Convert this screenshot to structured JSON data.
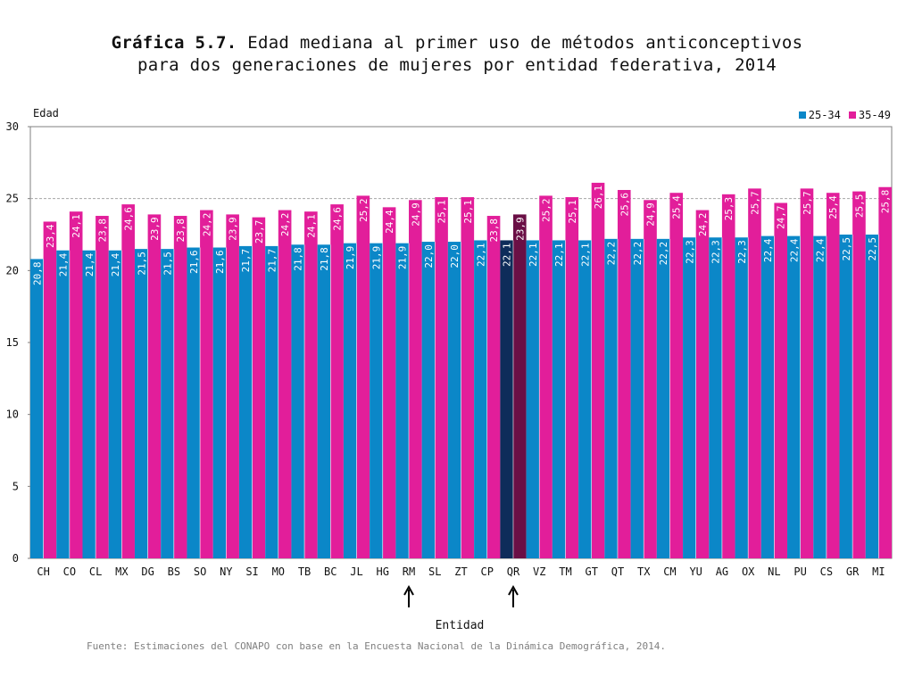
{
  "header": {
    "title_bold": "Gráfica 5.7.",
    "title_rest": "Edad mediana al primer uso de métodos anticonceptivos",
    "title_line2": "para dos generaciones de mujeres por entidad federativa, 2014"
  },
  "source": "Fuente: Estimaciones del CONAPO con base en la Encuesta Nacional de la Dinámica Demográfica, 2014.",
  "colors": {
    "series1": "#0b87c8",
    "series2": "#e21e9a",
    "series1_highlight": "#0e2c5a",
    "series2_highlight": "#6a0f45",
    "grid": "#a6a6a6",
    "axis": "#7f7f7f"
  },
  "chart_data": {
    "type": "bar",
    "xlabel": "Entidad",
    "ylabel": "Edad",
    "ylim": [
      0,
      30
    ],
    "yticks": [
      0,
      5,
      10,
      15,
      20,
      25,
      30
    ],
    "grid": "dashed at 25",
    "legend_position": "top-right",
    "categories": [
      "CH",
      "CO",
      "CL",
      "MX",
      "DG",
      "BS",
      "SO",
      "NY",
      "SI",
      "MO",
      "TB",
      "BC",
      "JL",
      "HG",
      "RM",
      "SL",
      "ZT",
      "CP",
      "QR",
      "VZ",
      "TM",
      "GT",
      "QT",
      "TX",
      "CM",
      "YU",
      "AG",
      "OX",
      "NL",
      "PU",
      "CS",
      "GR",
      "MI"
    ],
    "series": [
      {
        "name": "25-34",
        "values": [
          20.8,
          21.4,
          21.4,
          21.4,
          21.5,
          21.5,
          21.6,
          21.6,
          21.7,
          21.7,
          21.8,
          21.8,
          21.9,
          21.9,
          21.9,
          22.0,
          22.0,
          22.1,
          22.1,
          22.1,
          22.1,
          22.1,
          22.2,
          22.2,
          22.2,
          22.3,
          22.3,
          22.3,
          22.4,
          22.4,
          22.4,
          22.5,
          22.5
        ],
        "labels": [
          "20,8",
          "21,4",
          "21,4",
          "21,4",
          "21,5",
          "21,5",
          "21,6",
          "21,6",
          "21,7",
          "21,7",
          "21,8",
          "21,8",
          "21,9",
          "21,9",
          "21,9",
          "22,0",
          "22,0",
          "22,1",
          "22,1",
          "22,1",
          "22,1",
          "22,1",
          "22,2",
          "22,2",
          "22,2",
          "22,3",
          "22,3",
          "22,3",
          "22,4",
          "22,4",
          "22,4",
          "22,5",
          "22,5"
        ]
      },
      {
        "name": "35-49",
        "values": [
          23.4,
          24.1,
          23.8,
          24.6,
          23.9,
          23.8,
          24.2,
          23.9,
          23.7,
          24.2,
          24.1,
          24.6,
          25.2,
          24.4,
          24.9,
          25.1,
          25.1,
          23.8,
          23.9,
          25.2,
          25.1,
          26.1,
          25.6,
          24.9,
          25.4,
          24.2,
          25.3,
          25.7,
          24.7,
          25.7,
          25.4,
          25.5,
          25.8
        ],
        "labels": [
          "23,4",
          "24,1",
          "23,8",
          "24,6",
          "23,9",
          "23,8",
          "24,2",
          "23,9",
          "23,7",
          "24,2",
          "24,1",
          "24,6",
          "25,2",
          "24,4",
          "24,9",
          "25,1",
          "25,1",
          "23,8",
          "23,9",
          "25,2",
          "25,1",
          "26,1",
          "25,6",
          "24,9",
          "25,4",
          "24,2",
          "25,3",
          "25,7",
          "24,7",
          "25,7",
          "25,4",
          "25,5",
          "25,8"
        ]
      }
    ],
    "highlighted_category": "QR",
    "arrow_markers": [
      "RM",
      "QR"
    ]
  }
}
